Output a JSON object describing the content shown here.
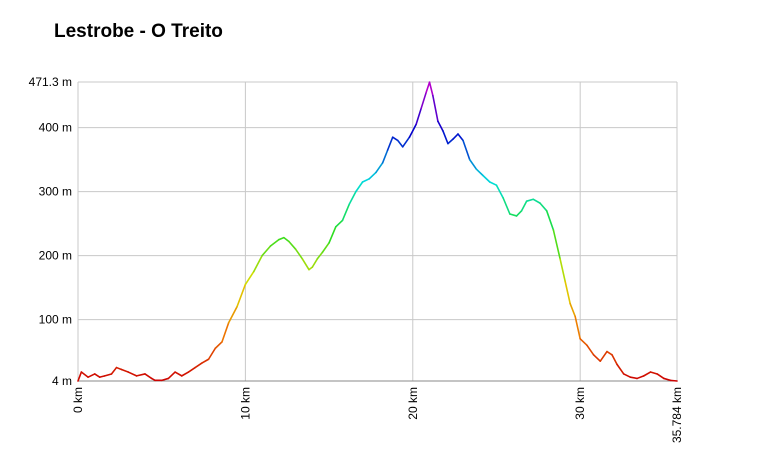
{
  "chart_data": {
    "type": "line",
    "title": "Lestrobe - O Treito",
    "xlabel": "",
    "ylabel": "",
    "x_unit": "km",
    "y_unit": "m",
    "xlim": [
      0,
      35.784
    ],
    "ylim": [
      4,
      471.3
    ],
    "x_ticks": [
      {
        "value": 0,
        "label": "0 km"
      },
      {
        "value": 10,
        "label": "10 km"
      },
      {
        "value": 20,
        "label": "20 km"
      },
      {
        "value": 30,
        "label": "30 km"
      },
      {
        "value": 35.784,
        "label": "35.784 km"
      }
    ],
    "y_ticks": [
      {
        "value": 4,
        "label": "4 m"
      },
      {
        "value": 100,
        "label": "100 m"
      },
      {
        "value": 200,
        "label": "200 m"
      },
      {
        "value": 300,
        "label": "300 m"
      },
      {
        "value": 400,
        "label": "400 m"
      },
      {
        "value": 471.3,
        "label": "471.3 m"
      }
    ],
    "grid": true,
    "color_gradient": [
      "#cc0000",
      "#ee7700",
      "#dddd00",
      "#22dd22",
      "#00dddd",
      "#0000cc",
      "#cc00cc"
    ],
    "series": [
      {
        "x": [
          0,
          0.2,
          0.6,
          1.0,
          1.3,
          1.6,
          2.0,
          2.3,
          2.6,
          3.0,
          3.5,
          4.0,
          4.4,
          4.6,
          5.0,
          5.4,
          5.8,
          6.2,
          6.6,
          7.0,
          7.4,
          7.8,
          8.2,
          8.6,
          9.0,
          9.5,
          10.0,
          10.5,
          11.0,
          11.5,
          12.0,
          12.3,
          12.6,
          13.0,
          13.4,
          13.8,
          14.0,
          14.3,
          14.6,
          15.0,
          15.4,
          15.8,
          16.2,
          16.6,
          17.0,
          17.4,
          17.8,
          18.2,
          18.5,
          18.8,
          19.1,
          19.4,
          19.8,
          20.2,
          20.5,
          20.8,
          21.0,
          21.2,
          21.5,
          21.8,
          22.1,
          22.4,
          22.7,
          23.0,
          23.4,
          23.8,
          24.2,
          24.6,
          25.0,
          25.4,
          25.8,
          26.2,
          26.5,
          26.8,
          27.2,
          27.6,
          28.0,
          28.4,
          28.8,
          29.1,
          29.4,
          29.7,
          30.0,
          30.4,
          30.8,
          31.2,
          31.6,
          31.9,
          32.2,
          32.6,
          33.0,
          33.4,
          33.8,
          34.2,
          34.6,
          35.0,
          35.4,
          35.784
        ],
        "y": [
          4,
          18,
          10,
          15,
          10,
          12,
          15,
          25,
          22,
          18,
          12,
          15,
          8,
          5,
          5,
          8,
          18,
          12,
          18,
          25,
          32,
          38,
          55,
          65,
          95,
          120,
          155,
          175,
          200,
          215,
          225,
          228,
          222,
          210,
          195,
          178,
          182,
          195,
          205,
          220,
          245,
          255,
          280,
          300,
          315,
          320,
          330,
          345,
          365,
          385,
          380,
          370,
          385,
          405,
          430,
          455,
          471,
          450,
          410,
          395,
          375,
          382,
          390,
          380,
          350,
          335,
          325,
          315,
          310,
          290,
          265,
          262,
          270,
          285,
          288,
          282,
          270,
          240,
          195,
          160,
          125,
          105,
          70,
          60,
          45,
          35,
          50,
          45,
          30,
          15,
          10,
          8,
          12,
          18,
          15,
          8,
          5,
          4
        ]
      }
    ]
  }
}
